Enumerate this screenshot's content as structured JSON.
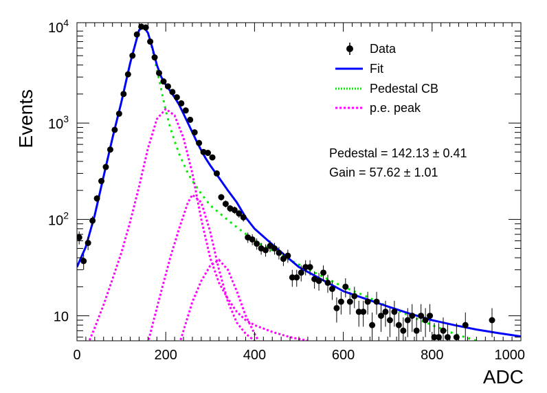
{
  "chart_data": {
    "type": "scatter",
    "xlabel": "ADC",
    "ylabel": "Events",
    "xlim": [
      0,
      1000
    ],
    "ylim": [
      5.5,
      11000
    ],
    "yscale": "log",
    "x_ticks": [
      "0",
      "200",
      "400",
      "600",
      "800",
      "1000"
    ],
    "y_ticks": [
      {
        "base": "10",
        "exp": ""
      },
      {
        "base": "10",
        "exp": "2"
      },
      {
        "base": "10",
        "exp": "3"
      },
      {
        "base": "10",
        "exp": "4"
      }
    ],
    "legend": {
      "position": "top-right",
      "entries": [
        {
          "label": "Data",
          "style": "marker",
          "color": "#000000"
        },
        {
          "label": "Fit",
          "style": "solid",
          "color": "#0000ff"
        },
        {
          "label": "Pedestal CB",
          "style": "dotted",
          "color": "#00ff00"
        },
        {
          "label": "p.e. peak",
          "style": "dotted",
          "color": "#ff00ff"
        }
      ]
    },
    "annotations": [
      "Pedestal = 142.13 ± 0.41",
      "Gain = 57.62 ± 1.01"
    ],
    "data_points": [
      {
        "x": 5,
        "y": 65,
        "err": 10
      },
      {
        "x": 15,
        "y": 37,
        "err": 7
      },
      {
        "x": 25,
        "y": 57,
        "err": 9
      },
      {
        "x": 35,
        "y": 97,
        "err": 11
      },
      {
        "x": 45,
        "y": 165,
        "err": 14
      },
      {
        "x": 55,
        "y": 250,
        "err": 17
      },
      {
        "x": 65,
        "y": 350,
        "err": 20
      },
      {
        "x": 75,
        "y": 530,
        "err": 25
      },
      {
        "x": 85,
        "y": 850,
        "err": 30
      },
      {
        "x": 95,
        "y": 1250,
        "err": 35
      },
      {
        "x": 105,
        "y": 2000,
        "err": 45
      },
      {
        "x": 115,
        "y": 3200,
        "err": 57
      },
      {
        "x": 125,
        "y": 5000,
        "err": 70
      },
      {
        "x": 135,
        "y": 8300,
        "err": 90
      },
      {
        "x": 145,
        "y": 10000,
        "err": 100
      },
      {
        "x": 155,
        "y": 9800,
        "err": 100
      },
      {
        "x": 165,
        "y": 7000,
        "err": 84
      },
      {
        "x": 175,
        "y": 4800,
        "err": 69
      },
      {
        "x": 185,
        "y": 3300,
        "err": 57
      },
      {
        "x": 195,
        "y": 2700,
        "err": 52
      },
      {
        "x": 205,
        "y": 2400,
        "err": 49
      },
      {
        "x": 215,
        "y": 2100,
        "err": 46
      },
      {
        "x": 225,
        "y": 1850,
        "err": 43
      },
      {
        "x": 235,
        "y": 1600,
        "err": 40
      },
      {
        "x": 245,
        "y": 1350,
        "err": 37
      },
      {
        "x": 255,
        "y": 1080,
        "err": 33
      },
      {
        "x": 265,
        "y": 800,
        "err": 28
      },
      {
        "x": 275,
        "y": 620,
        "err": 25
      },
      {
        "x": 285,
        "y": 500,
        "err": 22
      },
      {
        "x": 295,
        "y": 490,
        "err": 22
      },
      {
        "x": 305,
        "y": 440,
        "err": 21
      },
      {
        "x": 315,
        "y": 300,
        "err": 17
      },
      {
        "x": 325,
        "y": 170,
        "err": 13
      },
      {
        "x": 335,
        "y": 145,
        "err": 12
      },
      {
        "x": 345,
        "y": 130,
        "err": 11
      },
      {
        "x": 355,
        "y": 125,
        "err": 11
      },
      {
        "x": 365,
        "y": 115,
        "err": 11
      },
      {
        "x": 375,
        "y": 105,
        "err": 10
      },
      {
        "x": 385,
        "y": 65,
        "err": 8
      },
      {
        "x": 395,
        "y": 62,
        "err": 8
      },
      {
        "x": 405,
        "y": 56,
        "err": 7.5
      },
      {
        "x": 415,
        "y": 50,
        "err": 7
      },
      {
        "x": 425,
        "y": 48,
        "err": 7
      },
      {
        "x": 435,
        "y": 53,
        "err": 7.3
      },
      {
        "x": 445,
        "y": 50,
        "err": 7
      },
      {
        "x": 455,
        "y": 45,
        "err": 6.7
      },
      {
        "x": 465,
        "y": 39,
        "err": 6.2
      },
      {
        "x": 475,
        "y": 42,
        "err": 6.5
      },
      {
        "x": 485,
        "y": 25,
        "err": 5
      },
      {
        "x": 495,
        "y": 25,
        "err": 5
      },
      {
        "x": 505,
        "y": 28,
        "err": 5.3
      },
      {
        "x": 515,
        "y": 32,
        "err": 5.7
      },
      {
        "x": 525,
        "y": 32,
        "err": 5.7
      },
      {
        "x": 535,
        "y": 24,
        "err": 4.9
      },
      {
        "x": 545,
        "y": 23,
        "err": 4.8
      },
      {
        "x": 555,
        "y": 28,
        "err": 5.3
      },
      {
        "x": 565,
        "y": 22,
        "err": 4.7
      },
      {
        "x": 575,
        "y": 19,
        "err": 4.4
      },
      {
        "x": 585,
        "y": 12,
        "err": 3.5
      },
      {
        "x": 595,
        "y": 14,
        "err": 3.7
      },
      {
        "x": 605,
        "y": 20,
        "err": 4.5
      },
      {
        "x": 615,
        "y": 14,
        "err": 3.7
      },
      {
        "x": 625,
        "y": 16,
        "err": 4
      },
      {
        "x": 635,
        "y": 11,
        "err": 3.3
      },
      {
        "x": 645,
        "y": 11,
        "err": 3.3
      },
      {
        "x": 655,
        "y": 14,
        "err": 3.7
      },
      {
        "x": 665,
        "y": 8,
        "err": 2.8
      },
      {
        "x": 675,
        "y": 14,
        "err": 3.7
      },
      {
        "x": 685,
        "y": 10,
        "err": 3.2
      },
      {
        "x": 695,
        "y": 11,
        "err": 3.3
      },
      {
        "x": 705,
        "y": 9,
        "err": 3
      },
      {
        "x": 715,
        "y": 11,
        "err": 3.3
      },
      {
        "x": 725,
        "y": 8,
        "err": 2.8
      },
      {
        "x": 735,
        "y": 7,
        "err": 2.6
      },
      {
        "x": 745,
        "y": 9,
        "err": 3
      },
      {
        "x": 755,
        "y": 10,
        "err": 3.2
      },
      {
        "x": 765,
        "y": 7,
        "err": 2.6
      },
      {
        "x": 775,
        "y": 10,
        "err": 3.2
      },
      {
        "x": 785,
        "y": 9,
        "err": 3
      },
      {
        "x": 795,
        "y": 10,
        "err": 3.2
      },
      {
        "x": 805,
        "y": 6,
        "err": 2.4
      },
      {
        "x": 815,
        "y": 6,
        "err": 2.4
      },
      {
        "x": 825,
        "y": 7,
        "err": 2.6
      },
      {
        "x": 835,
        "y": 6,
        "err": 2.4
      },
      {
        "x": 855,
        "y": 6,
        "err": 2.4
      },
      {
        "x": 875,
        "y": 8,
        "err": 2.8
      },
      {
        "x": 935,
        "y": 9,
        "err": 3
      }
    ],
    "fit": {
      "x": [
        0,
        20,
        40,
        60,
        80,
        100,
        120,
        140,
        150,
        160,
        170,
        180,
        190,
        200,
        210,
        220,
        230,
        240,
        250,
        260,
        270,
        280,
        290,
        300,
        320,
        340,
        360,
        380,
        400,
        450,
        500,
        550,
        600,
        650,
        700,
        750,
        800,
        850,
        900,
        950,
        1000
      ],
      "y": [
        32,
        52,
        110,
        280,
        700,
        1650,
        4200,
        9200,
        10000,
        8600,
        6000,
        4000,
        3000,
        2500,
        2150,
        1850,
        1550,
        1250,
        1000,
        800,
        640,
        520,
        430,
        365,
        270,
        200,
        150,
        105,
        80,
        50,
        32,
        24,
        18,
        15,
        12.5,
        10.5,
        9,
        8,
        7.2,
        6.6,
        6.1
      ]
    },
    "pedestal_cb": {
      "x": [
        0,
        20,
        40,
        60,
        80,
        100,
        120,
        140,
        150,
        160,
        170,
        180,
        190,
        200,
        210,
        220,
        230,
        240,
        250,
        260,
        270,
        280,
        300,
        350,
        400,
        450,
        500,
        550,
        600,
        650,
        700,
        750,
        800,
        850,
        900
      ],
      "y": [
        32,
        52,
        110,
        280,
        700,
        1650,
        4200,
        9200,
        10000,
        8600,
        5800,
        3600,
        2200,
        1350,
        900,
        650,
        480,
        380,
        300,
        250,
        215,
        185,
        140,
        90,
        60,
        45,
        34,
        26,
        20,
        16,
        12.5,
        10,
        8,
        6.5,
        5.5
      ]
    },
    "pe_peaks": [
      {
        "x": [
          0,
          20,
          40,
          60,
          80,
          100,
          120,
          140,
          160,
          180,
          200,
          220,
          240,
          260,
          280,
          300,
          320,
          340,
          360,
          380,
          400,
          440,
          480,
          520
        ],
        "y": [
          3,
          4.5,
          7.5,
          13,
          24,
          45,
          95,
          220,
          550,
          1100,
          1400,
          1200,
          700,
          300,
          100,
          40,
          22,
          15,
          11,
          9,
          8,
          6.8,
          6,
          5.5
        ]
      },
      {
        "x": [
          150,
          170,
          190,
          210,
          230,
          250,
          260,
          280,
          300,
          320,
          340,
          360,
          380,
          400,
          420
        ],
        "y": [
          3.5,
          8,
          18,
          40,
          80,
          150,
          180,
          150,
          75,
          30,
          14,
          8.5,
          6.5,
          5.5,
          5
        ]
      },
      {
        "x": [
          220,
          240,
          260,
          280,
          300,
          320,
          340,
          360,
          380,
          400,
          420
        ],
        "y": [
          3.5,
          7,
          14,
          23,
          33,
          38,
          30,
          18,
          10,
          6.5,
          4.5
        ]
      }
    ]
  }
}
